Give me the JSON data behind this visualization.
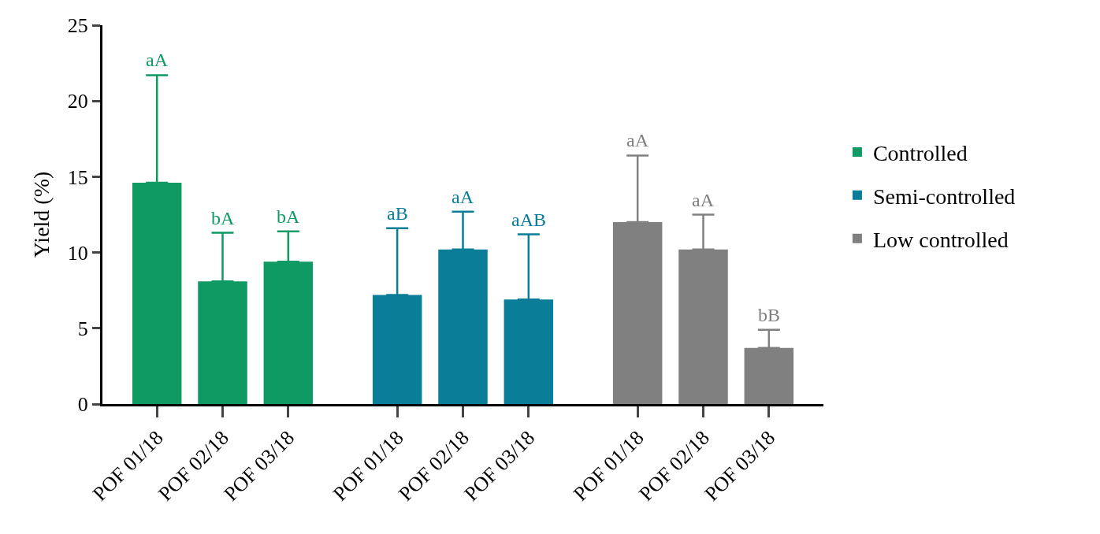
{
  "chart_data": [
    {
      "type": "bar",
      "ylabel": "Yield (%)",
      "categories": [
        "POF 01/18",
        "POF 02/18",
        "POF 03/18"
      ],
      "series": [
        {
          "name": "Controlled",
          "color": "#0e9a62",
          "values": [
            14.6,
            8.1,
            9.4
          ],
          "errors": [
            [
              14.6,
              21.7
            ],
            [
              8.1,
              11.3
            ],
            [
              9.4,
              11.4
            ]
          ]
        }
      ],
      "annotations": [
        {
          "text": "aA",
          "x": "POF 01/18",
          "y": 21.7
        },
        {
          "text": "bA",
          "x": "POF 02/18",
          "y": 11.3
        },
        {
          "text": "bA",
          "x": "POF 03/18",
          "y": 11.4
        }
      ],
      "ylim": [
        0,
        25
      ],
      "yticks": [
        0,
        5,
        10,
        15,
        20,
        25
      ],
      "grid": false,
      "legend": "right"
    },
    {
      "type": "bar",
      "categories": [
        "POF 01/18",
        "POF 02/18",
        "POF 03/18"
      ],
      "series": [
        {
          "name": "Semi-controlled",
          "color": "#0a7e98",
          "values": [
            7.2,
            10.2,
            6.9
          ],
          "errors": [
            [
              7.2,
              11.6
            ],
            [
              10.2,
              12.7
            ],
            [
              6.9,
              11.2
            ]
          ]
        }
      ],
      "annotations": [
        {
          "text": "aB",
          "x": "POF 01/18",
          "y": 11.6
        },
        {
          "text": "aA",
          "x": "POF 02/18",
          "y": 12.7
        },
        {
          "text": "aAB",
          "x": "POF 03/18",
          "y": 11.2
        }
      ],
      "ylim": [
        0,
        25
      ],
      "yticks": [
        0,
        5,
        10,
        15,
        20,
        25
      ],
      "grid": false,
      "legend": "right",
      "tick_labels": "x"
    },
    {
      "type": "bar",
      "categories": [
        "POF 01/18",
        "POF 02/18",
        "POF 03/18"
      ],
      "series": [
        {
          "name": "Low controlled",
          "color": "#808080",
          "values": [
            12.0,
            10.2,
            3.7
          ],
          "errors": [
            [
              12.0,
              16.4
            ],
            [
              10.2,
              12.5
            ],
            [
              3.7,
              4.9
            ]
          ]
        }
      ],
      "annotations": [
        {
          "text": "aA",
          "x": "POF 01/18",
          "y": 16.4
        },
        {
          "text": "aA",
          "x": "POF 02/18",
          "y": 12.5
        },
        {
          "text": "bB",
          "x": "POF 03/18",
          "y": 4.9
        }
      ],
      "ylim": [
        0,
        25
      ],
      "yticks": [
        0,
        5,
        10,
        15,
        20,
        25
      ],
      "grid": false,
      "legend": "right",
      "tick_labels": "x"
    }
  ]
}
